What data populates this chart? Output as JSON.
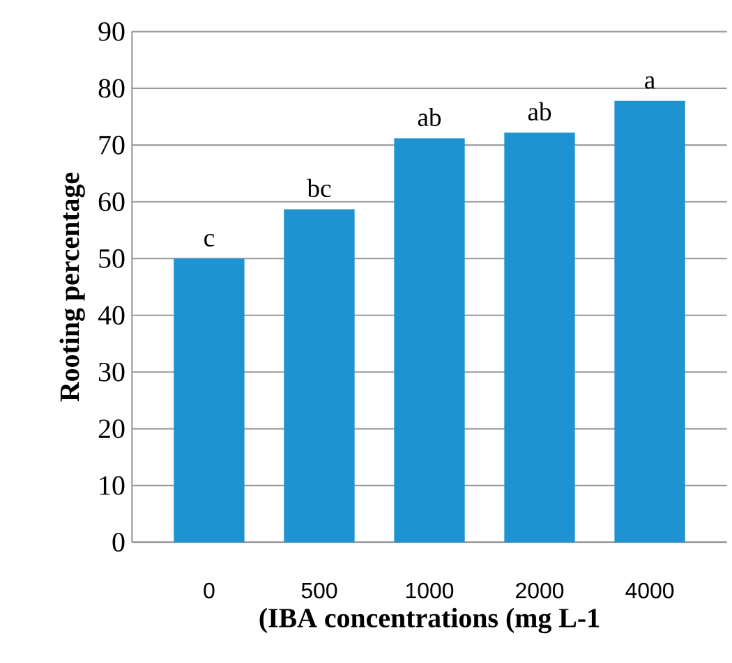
{
  "chart_data": {
    "type": "bar",
    "xlabel": "(IBA concentrations (mg L-1",
    "ylabel": "Rooting percentage",
    "categories": [
      "0",
      "500",
      "1000",
      "2000",
      "4000"
    ],
    "values": [
      50,
      58.7,
      71.2,
      72.2,
      77.8
    ],
    "color": "#1f93d2",
    "ylim": [
      0,
      90
    ],
    "yticks": [
      0,
      10,
      20,
      30,
      40,
      50,
      60,
      70,
      80,
      90
    ],
    "grid": "y",
    "annotations": [
      {
        "text": "c",
        "x": "0",
        "y": 50
      },
      {
        "text": "bc",
        "x": "500",
        "y": 58.7
      },
      {
        "text": "ab",
        "x": "1000",
        "y": 71.2
      },
      {
        "text": "ab",
        "x": "2000",
        "y": 72.2
      },
      {
        "text": "a",
        "x": "4000",
        "y": 77.8
      }
    ]
  }
}
